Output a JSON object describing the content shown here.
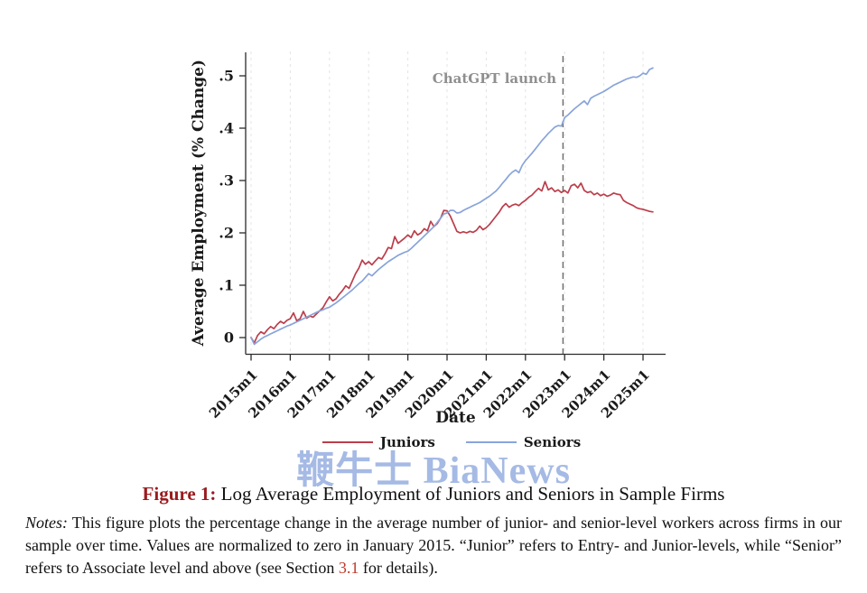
{
  "watermark": {
    "text": "鞭牛士 BiaNews",
    "color": "#8fa9de"
  },
  "caption": {
    "label": "Figure 1:",
    "label_color": "#991b1e",
    "text": " Log Average Employment of Juniors and Seniors in Sample Firms"
  },
  "notes": {
    "label": "Notes:",
    "body_before_link": " This figure plots the percentage change in the average number of junior- and senior-level workers across firms in our sample over time.  Values are normalized to zero in January 2015.  “Junior” refers to Entry- and Junior-levels, while “Senior” refers to Associate level and above (see Section ",
    "link_text": "3.1",
    "link_color": "#c0392b",
    "body_after_link": " for details)."
  },
  "chart_data": {
    "type": "line",
    "title": "",
    "xlabel": "Date",
    "ylabel": "Average Employment (% Change)",
    "x_unit": "month",
    "x_start": "2015m1",
    "x_end": "2025m4",
    "x_tick_labels": [
      "2015m1",
      "2016m1",
      "2017m1",
      "2018m1",
      "2019m1",
      "2020m1",
      "2021m1",
      "2022m1",
      "2023m1",
      "2024m1",
      "2025m1"
    ],
    "x_tick_month_indices": [
      0,
      12,
      24,
      36,
      48,
      60,
      72,
      84,
      96,
      108,
      120
    ],
    "y_tick_labels": [
      "0",
      ".1",
      ".2",
      ".3",
      ".4",
      ".5"
    ],
    "y_tick_values": [
      0,
      0.1,
      0.2,
      0.3,
      0.4,
      0.5
    ],
    "ylim": [
      -0.035,
      0.545
    ],
    "grid": "vertical-dashed",
    "grid_color": "#e4e4e4",
    "axis_color": "#2b2b2b",
    "annotation": {
      "text": "ChatGPT launch",
      "x": "2022m11",
      "month_index": 95.5,
      "line_color": "#6a6a6a",
      "text_color": "#8f8f8f"
    },
    "legend": {
      "position": "bottom",
      "entries": [
        {
          "label": "Juniors",
          "color": "#bb3e4b"
        },
        {
          "label": "Seniors",
          "color": "#88a4da"
        }
      ]
    },
    "series": [
      {
        "name": "Juniors",
        "color": "#bb3e4b",
        "values": [
          0.0,
          -0.01,
          0.004,
          0.011,
          0.007,
          0.015,
          0.021,
          0.017,
          0.025,
          0.031,
          0.027,
          0.033,
          0.036,
          0.047,
          0.032,
          0.036,
          0.05,
          0.037,
          0.041,
          0.039,
          0.045,
          0.051,
          0.057,
          0.068,
          0.078,
          0.07,
          0.074,
          0.083,
          0.09,
          0.099,
          0.094,
          0.108,
          0.122,
          0.133,
          0.148,
          0.14,
          0.145,
          0.139,
          0.146,
          0.153,
          0.15,
          0.16,
          0.172,
          0.17,
          0.193,
          0.18,
          0.185,
          0.19,
          0.196,
          0.191,
          0.204,
          0.196,
          0.2,
          0.208,
          0.204,
          0.222,
          0.212,
          0.218,
          0.228,
          0.243,
          0.242,
          0.232,
          0.218,
          0.203,
          0.2,
          0.202,
          0.2,
          0.203,
          0.201,
          0.205,
          0.213,
          0.206,
          0.21,
          0.216,
          0.224,
          0.232,
          0.24,
          0.25,
          0.256,
          0.249,
          0.253,
          0.255,
          0.252,
          0.258,
          0.262,
          0.268,
          0.272,
          0.279,
          0.285,
          0.28,
          0.298,
          0.282,
          0.286,
          0.279,
          0.282,
          0.277,
          0.281,
          0.276,
          0.29,
          0.293,
          0.286,
          0.295,
          0.281,
          0.277,
          0.279,
          0.273,
          0.276,
          0.271,
          0.274,
          0.27,
          0.272,
          0.276,
          0.274,
          0.273,
          0.262,
          0.258,
          0.255,
          0.252,
          0.248,
          0.246,
          0.245,
          0.243,
          0.241,
          0.24
        ]
      },
      {
        "name": "Seniors",
        "color": "#88a4da",
        "values": [
          0.0,
          -0.013,
          -0.008,
          -0.003,
          0.001,
          0.004,
          0.007,
          0.01,
          0.013,
          0.016,
          0.019,
          0.022,
          0.024,
          0.027,
          0.03,
          0.033,
          0.036,
          0.039,
          0.042,
          0.045,
          0.048,
          0.051,
          0.053,
          0.056,
          0.058,
          0.062,
          0.066,
          0.071,
          0.076,
          0.081,
          0.086,
          0.091,
          0.097,
          0.103,
          0.108,
          0.115,
          0.122,
          0.118,
          0.124,
          0.13,
          0.135,
          0.14,
          0.145,
          0.149,
          0.153,
          0.157,
          0.16,
          0.163,
          0.165,
          0.17,
          0.176,
          0.182,
          0.188,
          0.194,
          0.2,
          0.206,
          0.212,
          0.22,
          0.228,
          0.236,
          0.238,
          0.243,
          0.243,
          0.238,
          0.239,
          0.243,
          0.246,
          0.249,
          0.252,
          0.255,
          0.258,
          0.262,
          0.266,
          0.27,
          0.275,
          0.28,
          0.287,
          0.295,
          0.302,
          0.31,
          0.316,
          0.32,
          0.315,
          0.329,
          0.338,
          0.345,
          0.352,
          0.36,
          0.368,
          0.376,
          0.383,
          0.39,
          0.396,
          0.402,
          0.405,
          0.404,
          0.42,
          0.425,
          0.431,
          0.437,
          0.442,
          0.447,
          0.452,
          0.445,
          0.457,
          0.461,
          0.464,
          0.467,
          0.47,
          0.474,
          0.478,
          0.482,
          0.485,
          0.488,
          0.491,
          0.494,
          0.496,
          0.498,
          0.497,
          0.5,
          0.505,
          0.503,
          0.512,
          0.515
        ]
      }
    ]
  }
}
